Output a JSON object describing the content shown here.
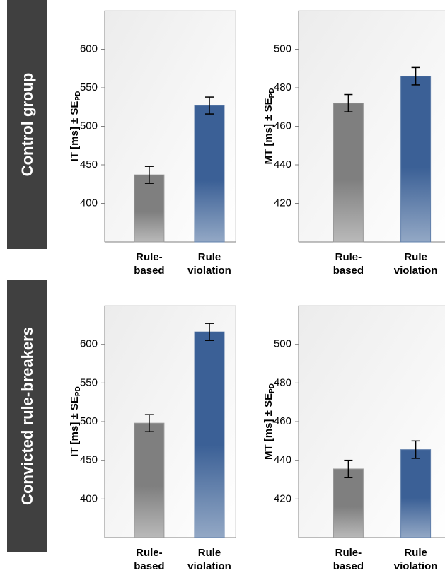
{
  "row_labels": [
    "Control group",
    "Convicted rule-breakers"
  ],
  "chart_data": [
    {
      "type": "bar",
      "ylabel": "IT [ms] ± SE",
      "ylabel_sub": "PD",
      "categories": [
        [
          "Rule-",
          "based"
        ],
        [
          "Rule",
          "violation"
        ]
      ],
      "values": [
        437,
        527
      ],
      "errors": [
        11,
        11
      ],
      "colors": [
        "#7f7f7f",
        "#3b6096"
      ],
      "ylim": [
        350,
        650
      ],
      "yticks": [
        400,
        450,
        500,
        550,
        600
      ]
    },
    {
      "type": "bar",
      "ylabel": "MT [ms] ± SE",
      "ylabel_sub": "PD",
      "categories": [
        [
          "Rule-",
          "based"
        ],
        [
          "Rule",
          "violation"
        ]
      ],
      "values": [
        472,
        486
      ],
      "errors": [
        4.5,
        4.5
      ],
      "colors": [
        "#7f7f7f",
        "#3b6096"
      ],
      "ylim": [
        400,
        520
      ],
      "yticks": [
        420,
        440,
        460,
        480,
        500
      ]
    },
    {
      "type": "bar",
      "ylabel": "IT [ms] ± SE",
      "ylabel_sub": "PD",
      "categories": [
        [
          "Rule-",
          "based"
        ],
        [
          "Rule",
          "violation"
        ]
      ],
      "values": [
        498,
        616
      ],
      "errors": [
        11,
        11
      ],
      "colors": [
        "#7f7f7f",
        "#3b6096"
      ],
      "ylim": [
        350,
        650
      ],
      "yticks": [
        400,
        450,
        500,
        550,
        600
      ]
    },
    {
      "type": "bar",
      "ylabel": "MT [ms] ± SE",
      "ylabel_sub": "PD",
      "categories": [
        [
          "Rule-",
          "based"
        ],
        [
          "Rule",
          "violation"
        ]
      ],
      "values": [
        435.5,
        445.5
      ],
      "errors": [
        4.5,
        4.5
      ],
      "colors": [
        "#7f7f7f",
        "#3b6096"
      ],
      "ylim": [
        400,
        520
      ],
      "yticks": [
        420,
        440,
        460,
        480,
        500
      ]
    }
  ]
}
